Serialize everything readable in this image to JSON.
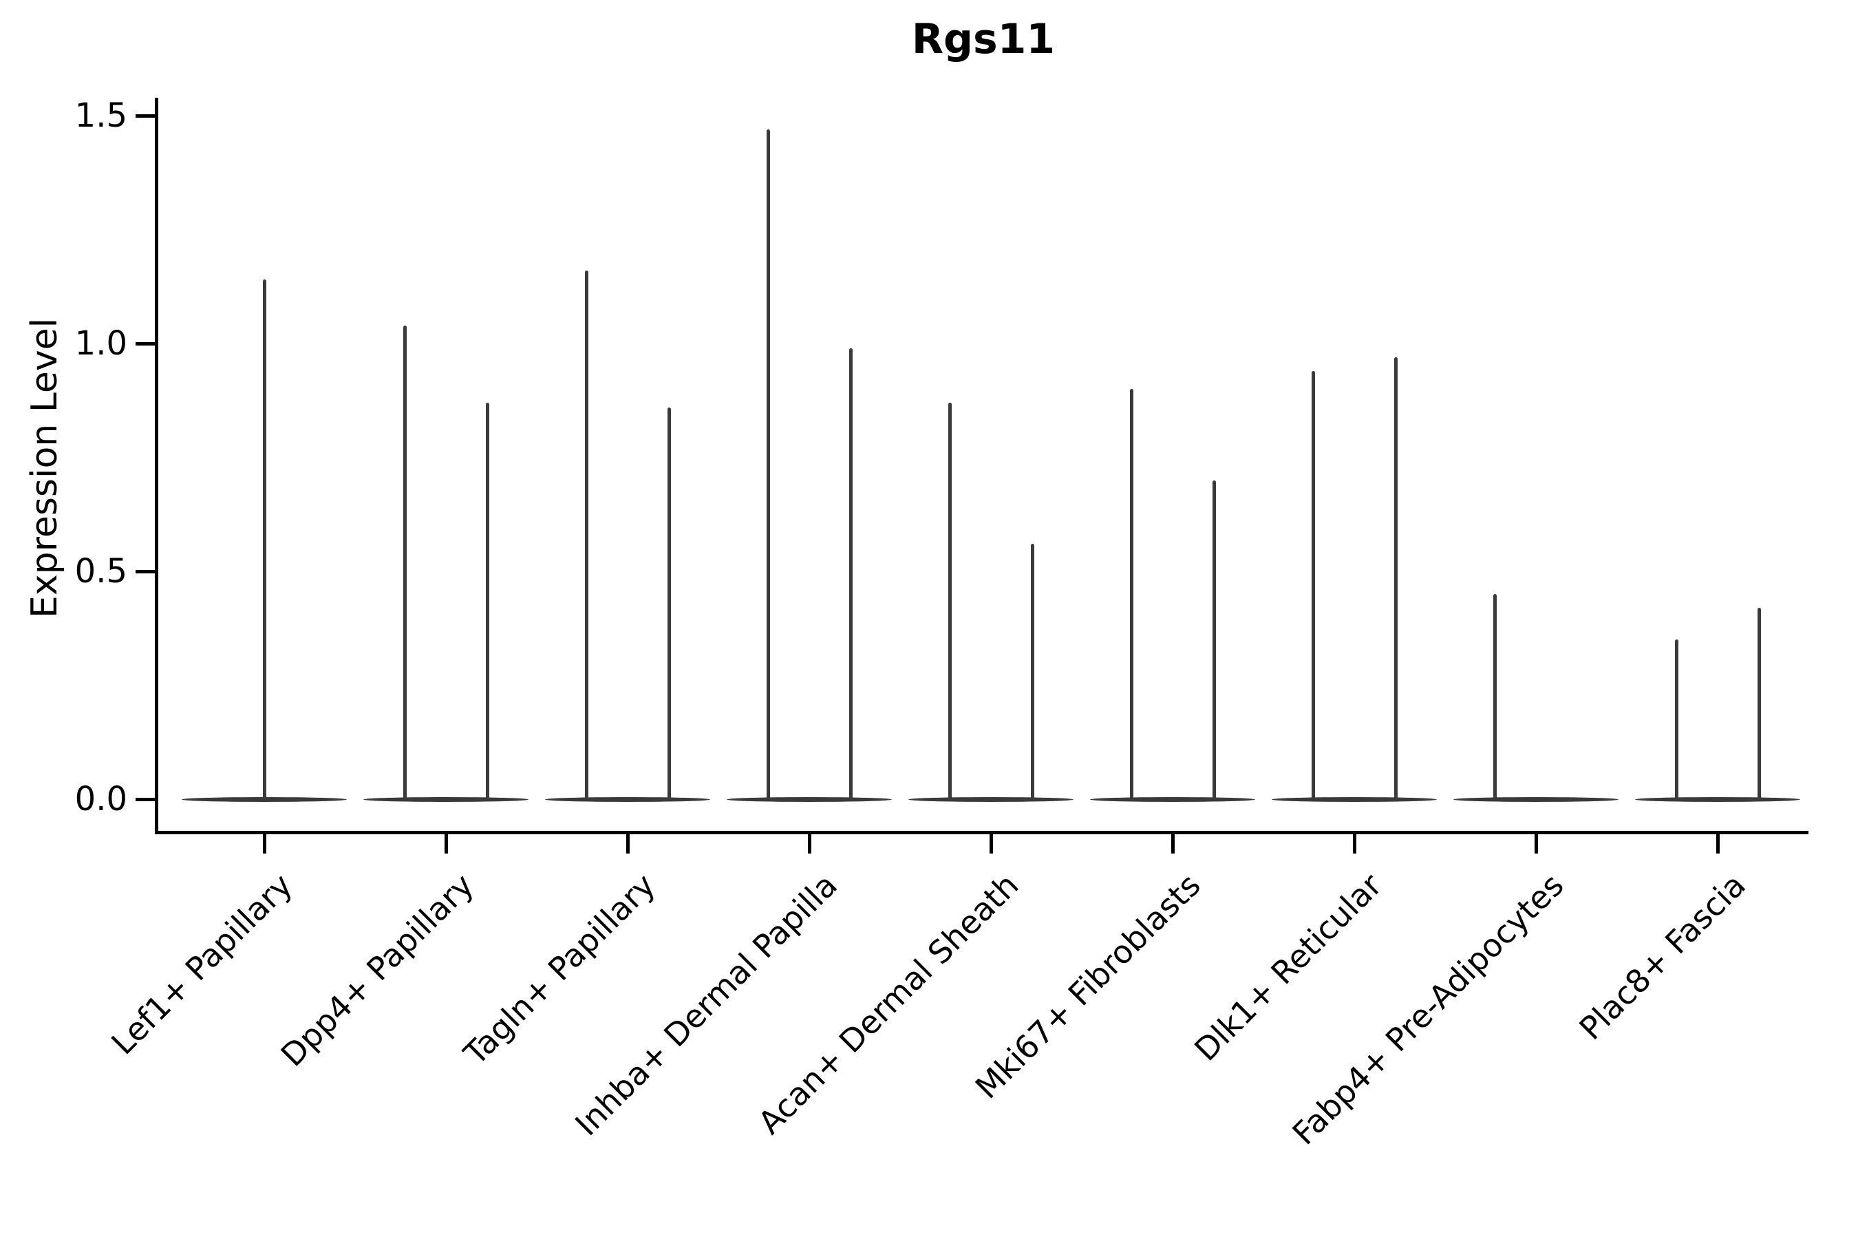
{
  "chart_data": {
    "type": "violin",
    "title": "Rgs11",
    "ylabel": "Expression Level",
    "xlabel": "",
    "ylim": [
      0,
      1.55
    ],
    "grid": false,
    "legend": "none",
    "y_ticks": [
      {
        "label": "0.0",
        "value": 0.0
      },
      {
        "label": "0.5",
        "value": 0.5
      },
      {
        "label": "1.0",
        "value": 1.0
      },
      {
        "label": "1.5",
        "value": 1.5
      }
    ],
    "categories": [
      {
        "label": "Lef1+ Papillary",
        "violins": [
          {
            "side": "center",
            "peak": 1.14
          }
        ]
      },
      {
        "label": "Dpp4+ Papillary",
        "violins": [
          {
            "side": "left",
            "peak": 1.04
          },
          {
            "side": "right",
            "peak": 0.87
          }
        ]
      },
      {
        "label": "Tagln+ Papillary",
        "violins": [
          {
            "side": "left",
            "peak": 1.16
          },
          {
            "side": "right",
            "peak": 0.86
          }
        ]
      },
      {
        "label": "Inhba+ Dermal Papilla",
        "violins": [
          {
            "side": "left",
            "peak": 1.47
          },
          {
            "side": "right",
            "peak": 0.99
          }
        ]
      },
      {
        "label": "Acan+ Dermal Sheath",
        "violins": [
          {
            "side": "left",
            "peak": 0.87
          },
          {
            "side": "right",
            "peak": 0.56
          }
        ]
      },
      {
        "label": "Mki67+ Fibroblasts",
        "violins": [
          {
            "side": "left",
            "peak": 0.9
          },
          {
            "side": "right",
            "peak": 0.7
          }
        ]
      },
      {
        "label": "Dlk1+ Reticular",
        "violins": [
          {
            "side": "left",
            "peak": 0.94
          },
          {
            "side": "right",
            "peak": 0.97
          }
        ]
      },
      {
        "label": "Fabp4+ Pre-Adipocytes",
        "violins": [
          {
            "side": "left",
            "peak": 0.45
          }
        ]
      },
      {
        "label": "Plac8+ Fascia",
        "violins": [
          {
            "side": "left",
            "peak": 0.35
          },
          {
            "side": "right",
            "peak": 0.42
          }
        ]
      }
    ],
    "colors": {
      "violin": "#3a3a3a",
      "axis": "#000000",
      "background": "#ffffff"
    }
  }
}
